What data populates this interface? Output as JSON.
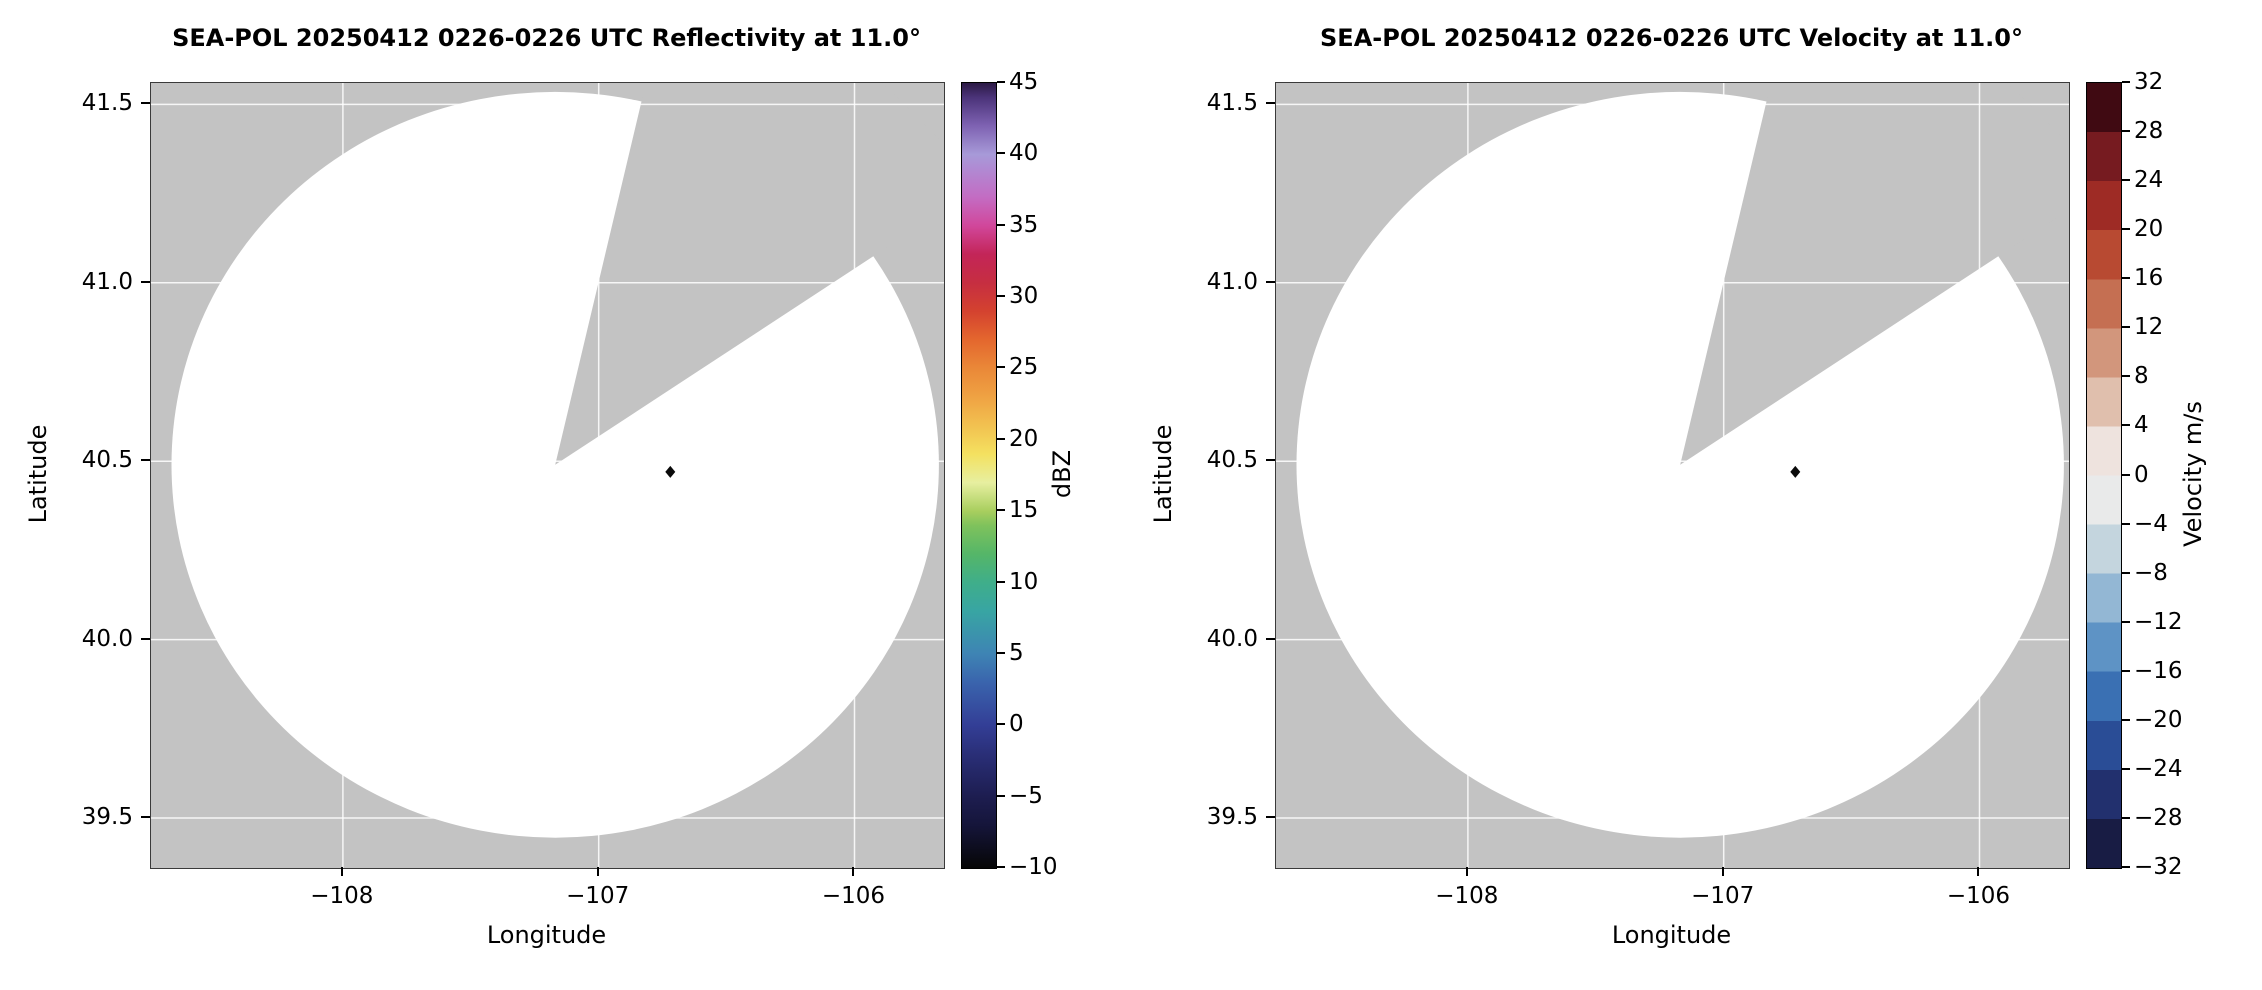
{
  "figure": {
    "background": "#ffffff",
    "nodata_color": "#c3c3c3",
    "scan_fill": "#ffffff",
    "grid_color": "#ffffff",
    "grid_opacity": 0.85,
    "tick_color": "#000000",
    "marker_color": "#0a0a0a"
  },
  "chart_data": [
    {
      "type": "radar_ppi",
      "title": "SEA-POL 20250412 0226-0226 UTC Reflectivity at 11.0°",
      "xlabel": "Longitude",
      "ylabel": "Latitude",
      "xlim": [
        -108.75,
        -105.65
      ],
      "ylim": [
        39.36,
        41.56
      ],
      "xticks": {
        "values": [
          -108,
          -107,
          -106
        ],
        "labels": [
          "−108",
          "−107",
          "−106"
        ]
      },
      "yticks": {
        "values": [
          39.5,
          40.0,
          40.5,
          41.0,
          41.5
        ],
        "labels": [
          "39.5",
          "40.0",
          "40.5",
          "41.0",
          "41.5"
        ]
      },
      "scan": {
        "center_lon": -107.17,
        "center_lat": 40.49,
        "radius_lon": 1.5,
        "radius_lat": 1.045,
        "missing_sector_azimuth_deg": [
          13,
          56
        ]
      },
      "marker": {
        "lon": -106.72,
        "lat": 40.47
      },
      "colorbar": {
        "label": "dBZ",
        "min": -10,
        "max": 45,
        "style": "gradient",
        "ticks": {
          "values": [
            -10,
            -5,
            0,
            5,
            10,
            15,
            20,
            25,
            30,
            35,
            40,
            45
          ],
          "labels": [
            "−10",
            "−5",
            "0",
            "5",
            "10",
            "15",
            "20",
            "25",
            "30",
            "35",
            "40",
            "45"
          ]
        },
        "stops": [
          [
            -10,
            "#060606"
          ],
          [
            -7,
            "#15153a"
          ],
          [
            -5,
            "#1d1d50"
          ],
          [
            -2,
            "#2a2f78"
          ],
          [
            0,
            "#333e96"
          ],
          [
            3,
            "#3a64ad"
          ],
          [
            5,
            "#3e84b4"
          ],
          [
            8,
            "#38a5a3"
          ],
          [
            10,
            "#3fae8a"
          ],
          [
            12,
            "#55b668"
          ],
          [
            14,
            "#7fc25c"
          ],
          [
            15,
            "#a8ce5e"
          ],
          [
            17,
            "#e7efa0"
          ],
          [
            19,
            "#f4e160"
          ],
          [
            21,
            "#f2c150"
          ],
          [
            23,
            "#efa243"
          ],
          [
            25,
            "#ea8838"
          ],
          [
            27,
            "#e4672e"
          ],
          [
            29,
            "#d4422f"
          ],
          [
            31,
            "#c62e41"
          ],
          [
            33,
            "#c32558"
          ],
          [
            35,
            "#d1479b"
          ],
          [
            37,
            "#c36cc3"
          ],
          [
            39,
            "#b08ad3"
          ],
          [
            40,
            "#a79ad8"
          ],
          [
            42,
            "#7e62b2"
          ],
          [
            44,
            "#4b3379"
          ],
          [
            45,
            "#2c1a45"
          ]
        ]
      }
    },
    {
      "type": "radar_ppi",
      "title": "SEA-POL 20250412 0226-0226 UTC Velocity at 11.0°",
      "xlabel": "Longitude",
      "ylabel": "Latitude",
      "xlim": [
        -108.75,
        -105.65
      ],
      "ylim": [
        39.36,
        41.56
      ],
      "xticks": {
        "values": [
          -108,
          -107,
          -106
        ],
        "labels": [
          "−108",
          "−107",
          "−106"
        ]
      },
      "yticks": {
        "values": [
          39.5,
          40.0,
          40.5,
          41.0,
          41.5
        ],
        "labels": [
          "39.5",
          "40.0",
          "40.5",
          "41.0",
          "41.5"
        ]
      },
      "scan": {
        "center_lon": -107.17,
        "center_lat": 40.49,
        "radius_lon": 1.5,
        "radius_lat": 1.045,
        "missing_sector_azimuth_deg": [
          13,
          56
        ]
      },
      "marker": {
        "lon": -106.72,
        "lat": 40.47
      },
      "colorbar": {
        "label": "Velocity m/s",
        "min": -32,
        "max": 32,
        "style": "discrete",
        "ticks": {
          "values": [
            -32,
            -28,
            -24,
            -20,
            -16,
            -12,
            -8,
            -4,
            0,
            4,
            8,
            12,
            16,
            20,
            24,
            28,
            32
          ],
          "labels": [
            "−32",
            "−28",
            "−24",
            "−20",
            "−16",
            "−12",
            "−8",
            "−4",
            "0",
            "4",
            "8",
            "12",
            "16",
            "20",
            "24",
            "28",
            "32"
          ]
        },
        "colors": [
          "#181c44",
          "#22306e",
          "#2a4d96",
          "#3a70b3",
          "#5e93c5",
          "#93b7d4",
          "#c4d5de",
          "#e9eaea",
          "#eee3de",
          "#e0bfad",
          "#d2967c",
          "#c56f52",
          "#b84a32",
          "#9e2b25",
          "#761b20",
          "#400a12"
        ]
      }
    }
  ]
}
